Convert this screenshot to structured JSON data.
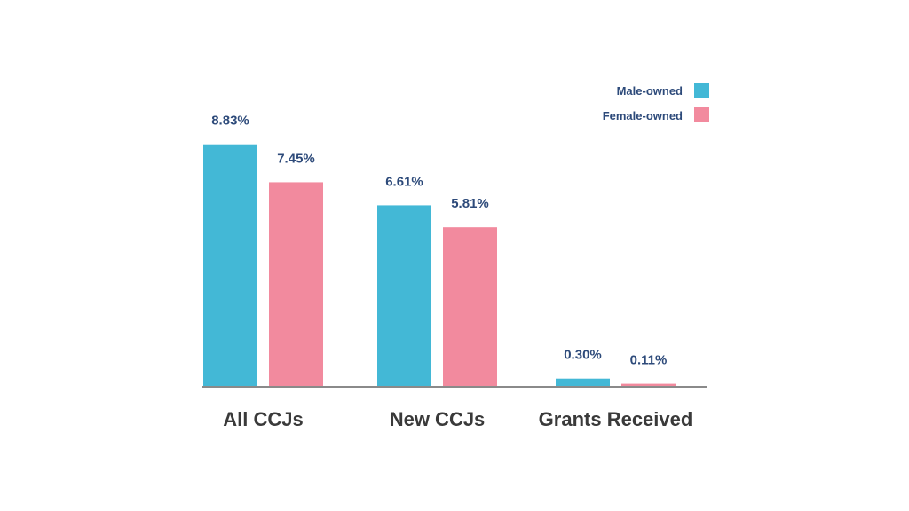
{
  "chart_data": {
    "type": "bar",
    "categories": [
      "All CCJs",
      "New CCJs",
      "Grants Received"
    ],
    "series": [
      {
        "name": "Male-owned",
        "color": "#43b8d6",
        "values": [
          8.83,
          6.61,
          0.3
        ],
        "labels": [
          "8.83%",
          "6.61%",
          "0.30%"
        ]
      },
      {
        "name": "Female-owned",
        "color": "#f28a9e",
        "values": [
          7.45,
          5.81,
          0.11
        ],
        "labels": [
          "7.45%",
          "5.81%",
          "0.11%"
        ]
      }
    ],
    "unit": "%",
    "grid": false,
    "legend": "top-right",
    "axis_color": "#8a8a8a"
  }
}
